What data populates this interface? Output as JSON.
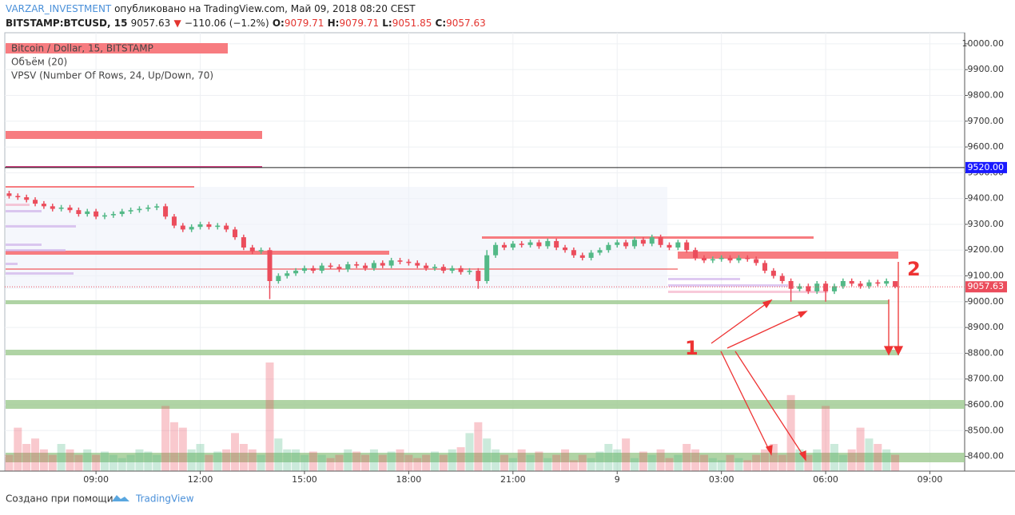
{
  "header": {
    "author": "VARZAR_INVESTMENT",
    "published": "опубликовано на TradingView.com, Май 09, 2018 08:20 CEST",
    "symbol": "BITSTAMP:BTCUSD, 15",
    "last": "9057.63",
    "arrow": "▼",
    "change": "−110.06 (−1.2%)",
    "o_label": "O:",
    "o": "9079.71",
    "h_label": "H:",
    "h": "9079.71",
    "l_label": "L:",
    "l": "9051.85",
    "c_label": "C:",
    "c": "9057.63"
  },
  "chart_data": {
    "type": "candlestick",
    "legend": [
      "Bitcoin / Dollar, 15, BITSTAMP",
      "Объём (20)",
      "VPSV (Number Of Rows, 24, Up/Down, 70)"
    ],
    "up_color": "#53b987",
    "down_color": "#eb4d5c",
    "candles": [
      [
        9420,
        9430,
        9400,
        9410
      ],
      [
        9410,
        9420,
        9395,
        9405
      ],
      [
        9405,
        9415,
        9385,
        9395
      ],
      [
        9395,
        9405,
        9370,
        9380
      ],
      [
        9380,
        9390,
        9360,
        9370
      ],
      [
        9370,
        9380,
        9350,
        9360
      ],
      [
        9360,
        9375,
        9350,
        9365
      ],
      [
        9365,
        9375,
        9345,
        9355
      ],
      [
        9355,
        9365,
        9330,
        9340
      ],
      [
        9340,
        9360,
        9330,
        9350
      ],
      [
        9350,
        9360,
        9320,
        9330
      ],
      [
        9330,
        9345,
        9320,
        9335
      ],
      [
        9335,
        9350,
        9325,
        9340
      ],
      [
        9340,
        9360,
        9330,
        9350
      ],
      [
        9350,
        9365,
        9340,
        9355
      ],
      [
        9355,
        9370,
        9345,
        9360
      ],
      [
        9360,
        9375,
        9350,
        9365
      ],
      [
        9365,
        9380,
        9355,
        9370
      ],
      [
        9370,
        9380,
        9320,
        9330
      ],
      [
        9330,
        9340,
        9285,
        9295
      ],
      [
        9295,
        9305,
        9270,
        9280
      ],
      [
        9280,
        9300,
        9270,
        9290
      ],
      [
        9290,
        9310,
        9280,
        9300
      ],
      [
        9300,
        9310,
        9280,
        9290
      ],
      [
        9290,
        9305,
        9280,
        9295
      ],
      [
        9295,
        9305,
        9270,
        9280
      ],
      [
        9280,
        9290,
        9240,
        9250
      ],
      [
        9250,
        9260,
        9200,
        9210
      ],
      [
        9210,
        9220,
        9185,
        9195
      ],
      [
        9195,
        9210,
        9185,
        9200
      ],
      [
        9200,
        9210,
        9010,
        9080
      ],
      [
        9080,
        9110,
        9070,
        9100
      ],
      [
        9100,
        9120,
        9090,
        9110
      ],
      [
        9110,
        9130,
        9100,
        9120
      ],
      [
        9120,
        9140,
        9110,
        9130
      ],
      [
        9130,
        9140,
        9110,
        9120
      ],
      [
        9120,
        9150,
        9110,
        9140
      ],
      [
        9140,
        9150,
        9125,
        9135
      ],
      [
        9135,
        9145,
        9115,
        9125
      ],
      [
        9125,
        9155,
        9115,
        9145
      ],
      [
        9145,
        9155,
        9130,
        9140
      ],
      [
        9140,
        9150,
        9120,
        9130
      ],
      [
        9130,
        9160,
        9120,
        9150
      ],
      [
        9150,
        9160,
        9130,
        9140
      ],
      [
        9140,
        9170,
        9130,
        9160
      ],
      [
        9160,
        9170,
        9145,
        9155
      ],
      [
        9155,
        9165,
        9140,
        9150
      ],
      [
        9150,
        9160,
        9130,
        9140
      ],
      [
        9140,
        9150,
        9120,
        9130
      ],
      [
        9130,
        9145,
        9120,
        9135
      ],
      [
        9135,
        9145,
        9110,
        9120
      ],
      [
        9120,
        9140,
        9110,
        9130
      ],
      [
        9130,
        9140,
        9105,
        9115
      ],
      [
        9115,
        9130,
        9105,
        9120
      ],
      [
        9120,
        9130,
        9050,
        9080
      ],
      [
        9080,
        9200,
        9070,
        9180
      ],
      [
        9180,
        9230,
        9170,
        9220
      ],
      [
        9220,
        9230,
        9200,
        9210
      ],
      [
        9210,
        9235,
        9200,
        9225
      ],
      [
        9225,
        9235,
        9210,
        9220
      ],
      [
        9220,
        9240,
        9210,
        9230
      ],
      [
        9230,
        9240,
        9205,
        9215
      ],
      [
        9215,
        9245,
        9205,
        9235
      ],
      [
        9235,
        9245,
        9200,
        9210
      ],
      [
        9210,
        9220,
        9190,
        9200
      ],
      [
        9200,
        9210,
        9170,
        9180
      ],
      [
        9180,
        9190,
        9160,
        9170
      ],
      [
        9170,
        9200,
        9160,
        9190
      ],
      [
        9190,
        9210,
        9180,
        9200
      ],
      [
        9200,
        9230,
        9190,
        9220
      ],
      [
        9220,
        9240,
        9210,
        9230
      ],
      [
        9230,
        9240,
        9205,
        9215
      ],
      [
        9215,
        9250,
        9205,
        9240
      ],
      [
        9240,
        9250,
        9215,
        9225
      ],
      [
        9225,
        9260,
        9215,
        9250
      ],
      [
        9250,
        9260,
        9210,
        9220
      ],
      [
        9220,
        9230,
        9200,
        9210
      ],
      [
        9210,
        9240,
        9200,
        9230
      ],
      [
        9230,
        9240,
        9190,
        9200
      ],
      [
        9200,
        9210,
        9160,
        9170
      ],
      [
        9170,
        9180,
        9150,
        9160
      ],
      [
        9160,
        9175,
        9150,
        9165
      ],
      [
        9165,
        9180,
        9155,
        9170
      ],
      [
        9170,
        9180,
        9150,
        9160
      ],
      [
        9160,
        9180,
        9150,
        9170
      ],
      [
        9170,
        9180,
        9155,
        9165
      ],
      [
        9165,
        9175,
        9140,
        9150
      ],
      [
        9150,
        9160,
        9110,
        9120
      ],
      [
        9120,
        9130,
        9090,
        9100
      ],
      [
        9100,
        9110,
        9070,
        9080
      ],
      [
        9080,
        9090,
        9000,
        9050
      ],
      [
        9050,
        9070,
        9040,
        9060
      ],
      [
        9060,
        9070,
        9030,
        9040
      ],
      [
        9040,
        9080,
        9030,
        9070
      ],
      [
        9070,
        9080,
        9000,
        9040
      ],
      [
        9040,
        9070,
        9030,
        9060
      ],
      [
        9060,
        9090,
        9050,
        9080
      ],
      [
        9080,
        9090,
        9060,
        9070
      ],
      [
        9070,
        9080,
        9050,
        9060
      ],
      [
        9060,
        9085,
        9050,
        9075
      ],
      [
        9075,
        9085,
        9060,
        9070
      ],
      [
        9070,
        9090,
        9060,
        9079.71
      ],
      [
        9079.71,
        9079.71,
        9051.85,
        9057.63
      ]
    ],
    "volume": [
      15,
      40,
      25,
      30,
      20,
      15,
      25,
      20,
      15,
      20,
      15,
      18,
      15,
      12,
      15,
      20,
      18,
      15,
      60,
      45,
      40,
      20,
      25,
      15,
      18,
      20,
      35,
      25,
      20,
      15,
      100,
      30,
      20,
      20,
      15,
      18,
      15,
      12,
      15,
      20,
      18,
      15,
      20,
      15,
      18,
      20,
      15,
      12,
      15,
      18,
      15,
      20,
      22,
      35,
      45,
      30,
      20,
      15,
      12,
      20,
      15,
      18,
      12,
      15,
      20,
      10,
      15,
      12,
      18,
      25,
      20,
      30,
      12,
      18,
      15,
      20,
      12,
      15,
      25,
      20,
      15,
      12,
      10,
      15,
      12,
      10,
      15,
      20,
      25,
      15,
      70,
      20,
      15,
      20,
      60,
      25,
      15,
      20,
      40,
      30,
      25,
      20,
      15
    ],
    "xlim": [
      -0.5,
      110
    ],
    "xticks": [
      {
        "value": 10,
        "label": "09:00"
      },
      {
        "value": 22,
        "label": "12:00"
      },
      {
        "value": 34,
        "label": "15:00"
      },
      {
        "value": 46,
        "label": "18:00"
      },
      {
        "value": 58,
        "label": "21:00"
      },
      {
        "value": 70,
        "label": "9"
      },
      {
        "value": 82,
        "label": "03:00"
      },
      {
        "value": 94,
        "label": "06:00"
      },
      {
        "value": 106,
        "label": "09:00"
      }
    ],
    "ylim": [
      8343,
      10043
    ],
    "yticks": [
      {
        "value": 8400,
        "label": "8400.00"
      },
      {
        "value": 8500,
        "label": "8500.00"
      },
      {
        "value": 8600,
        "label": "8600.00"
      },
      {
        "value": 8700,
        "label": "8700.00"
      },
      {
        "value": 8800,
        "label": "8800.00"
      },
      {
        "value": 8900,
        "label": "8900.00"
      },
      {
        "value": 9000,
        "label": "9000.00"
      },
      {
        "value": 9100,
        "label": "9100.00"
      },
      {
        "value": 9200,
        "label": "9200.00"
      },
      {
        "value": 9300,
        "label": "9300.00"
      },
      {
        "value": 9400,
        "label": "9400.00"
      },
      {
        "value": 9500,
        "label": "9500.00"
      },
      {
        "value": 9600,
        "label": "9600.00"
      },
      {
        "value": 9700,
        "label": "9700.00"
      },
      {
        "value": 9800,
        "label": "9800.00"
      },
      {
        "value": 9900,
        "label": "9900.00"
      },
      {
        "value": 10000,
        "label": "10000.00"
      }
    ],
    "marker_price": {
      "value": 9520,
      "label": "9520.00"
    },
    "last_price": {
      "value": 9057.63,
      "label": "9057.63"
    },
    "annotations": [
      "1",
      "2"
    ]
  },
  "footer": {
    "made_with": "Создано при помощи",
    "brand": "TradingView"
  }
}
